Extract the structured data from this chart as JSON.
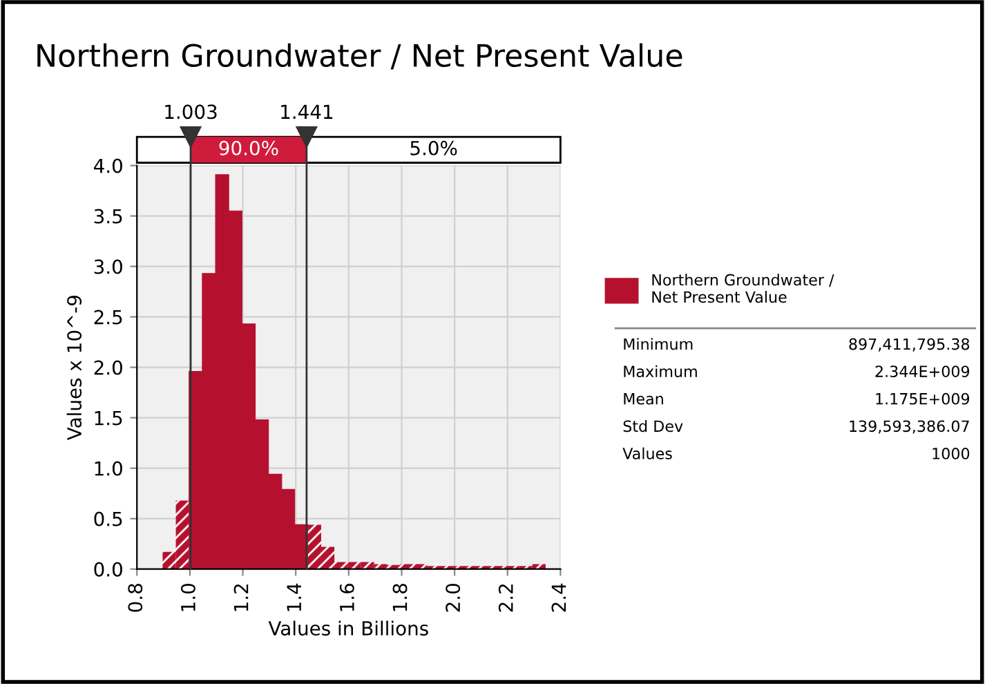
{
  "chart_data": {
    "type": "histogram",
    "title": "Northern Groundwater / Net Present Value",
    "xlabel": "Values in Billions",
    "ylabel": "Values x 10^-9",
    "bins": [
      0.897,
      0.947,
      0.997,
      1.047,
      1.097,
      1.147,
      1.197,
      1.247,
      1.297,
      1.347,
      1.396,
      1.446,
      1.496,
      1.546,
      1.596,
      1.646,
      1.696,
      1.745,
      1.795,
      1.845,
      1.895,
      1.945,
      1.995,
      2.045,
      2.094,
      2.144,
      2.194,
      2.244,
      2.294,
      2.344
    ],
    "series": [
      {
        "name": "Northern Groundwater / Net Present Value",
        "color": "#b5112f",
        "values": [
          0.17,
          0.68,
          1.96,
          2.93,
          3.91,
          3.55,
          2.43,
          1.48,
          0.94,
          0.79,
          0.44,
          0.44,
          0.22,
          0.07,
          0.07,
          0.07,
          0.05,
          0.04,
          0.05,
          0.05,
          0.03,
          0.03,
          0.03,
          0.03,
          0.03,
          0.03,
          0.03,
          0.03,
          0.05
        ]
      }
    ],
    "xlim": [
      0.8,
      2.4
    ],
    "xticks": [
      0.8,
      {
        "value": 1.0,
        "label": "1.0"
      },
      1.2,
      1.4,
      1.6,
      1.8,
      {
        "value": 2.0,
        "label": "2.0"
      },
      2.2,
      2.4
    ],
    "ylim": [
      0,
      4.0
    ],
    "yticks": [
      {
        "value": 0,
        "label": "0.0"
      },
      {
        "value": 0.5,
        "label": "0.5"
      },
      {
        "value": 1.0,
        "label": "1.0"
      },
      {
        "value": 1.5,
        "label": "1.5"
      },
      {
        "value": 2.0,
        "label": "2.0"
      },
      {
        "value": 2.5,
        "label": "2.5"
      },
      {
        "value": 3.0,
        "label": "3.0"
      },
      {
        "value": 3.5,
        "label": "3.5"
      },
      {
        "value": 4.0,
        "label": "4.0"
      }
    ],
    "ref_lines": [
      {
        "axis": "x",
        "value": 1.003,
        "label": "1.003",
        "color": "#333333"
      },
      {
        "axis": "x",
        "value": 1.441,
        "label": "1.441",
        "color": "#333333"
      }
    ],
    "annotations": [
      "90.0%",
      "5.0%",
      "Minimum",
      "897,411,795.38",
      "Maximum",
      "2.344E+009",
      "Mean",
      "1.175E+009",
      "Std Dev",
      "139,593,386.07",
      "Values",
      "1000"
    ],
    "grid": true,
    "legend": "right"
  }
}
